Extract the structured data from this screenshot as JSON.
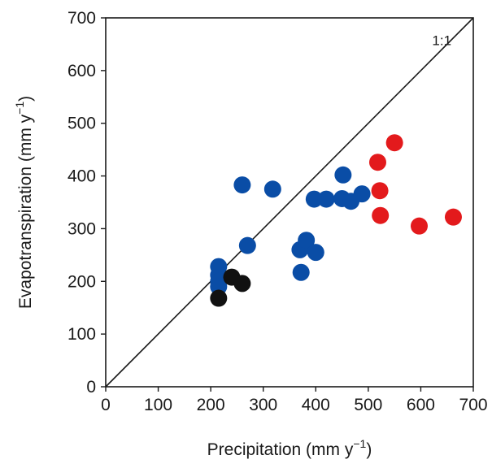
{
  "chart_data": {
    "type": "scatter",
    "xlabel": "Precipitation (mm y",
    "xlabel_sup": "−1",
    "xlabel_end": ")",
    "ylabel": "Evapotranspiration (mm y",
    "ylabel_sup": "−1",
    "ylabel_end": ")",
    "xlim": [
      0,
      700
    ],
    "ylim": [
      0,
      700
    ],
    "xticks": [
      0,
      100,
      200,
      300,
      400,
      500,
      600,
      700
    ],
    "yticks": [
      0,
      100,
      200,
      300,
      400,
      500,
      600,
      700
    ],
    "reference_line": {
      "label": "1:1",
      "from": [
        0,
        0
      ],
      "to": [
        700,
        700
      ],
      "color": "#1a1a1a"
    },
    "series": [
      {
        "color": "#0a4da6",
        "points": [
          {
            "x": 215,
            "y": 228
          },
          {
            "x": 215,
            "y": 212
          },
          {
            "x": 215,
            "y": 200
          },
          {
            "x": 215,
            "y": 190
          },
          {
            "x": 260,
            "y": 383
          },
          {
            "x": 318,
            "y": 375
          },
          {
            "x": 270,
            "y": 268
          },
          {
            "x": 370,
            "y": 260
          },
          {
            "x": 382,
            "y": 278
          },
          {
            "x": 372,
            "y": 217
          },
          {
            "x": 400,
            "y": 255
          },
          {
            "x": 397,
            "y": 356
          },
          {
            "x": 420,
            "y": 356
          },
          {
            "x": 450,
            "y": 357
          },
          {
            "x": 467,
            "y": 352
          },
          {
            "x": 488,
            "y": 366
          },
          {
            "x": 452,
            "y": 402
          }
        ]
      },
      {
        "color": "#111111",
        "points": [
          {
            "x": 215,
            "y": 168
          },
          {
            "x": 240,
            "y": 208
          },
          {
            "x": 260,
            "y": 196
          }
        ]
      },
      {
        "color": "#e31a1c",
        "points": [
          {
            "x": 550,
            "y": 463
          },
          {
            "x": 518,
            "y": 426
          },
          {
            "x": 522,
            "y": 372
          },
          {
            "x": 523,
            "y": 325
          },
          {
            "x": 597,
            "y": 305
          },
          {
            "x": 662,
            "y": 322
          }
        ]
      }
    ]
  }
}
